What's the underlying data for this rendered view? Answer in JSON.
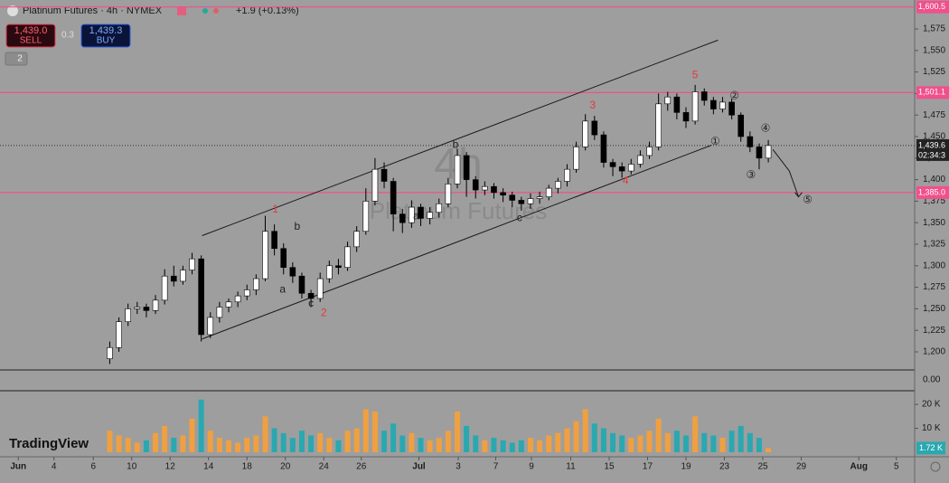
{
  "header": {
    "symbol": "Platinum Futures · 4h · NYMEX",
    "change": "+1.9 (+0.13%)",
    "sell_price": "1,439.0",
    "sell": "SELL",
    "spread": "0.3",
    "buy_price": "1,439.3",
    "buy": "BUY",
    "layers": "2",
    "logo": "TradingView"
  },
  "watermark": {
    "interval": "4h",
    "name": "Platinum Futures"
  },
  "chart_data": {
    "type": "candlestick",
    "up_color": "#ffffff",
    "down_color": "#000000",
    "xlim": [
      0,
      100
    ],
    "ylim": [
      1179,
      1608.6
    ],
    "yticks": [
      {
        "value": 1200,
        "label": "1,200"
      },
      {
        "value": 1225,
        "label": "1,225"
      },
      {
        "value": 1250,
        "label": "1,250"
      },
      {
        "value": 1275,
        "label": "1,275"
      },
      {
        "value": 1300,
        "label": "1,300"
      },
      {
        "value": 1325,
        "label": "1,325"
      },
      {
        "value": 1350,
        "label": "1,350"
      },
      {
        "value": 1375,
        "label": "1,375"
      },
      {
        "value": 1400,
        "label": "1,400"
      },
      {
        "value": 1425,
        "label": "1,425"
      },
      {
        "value": 1450,
        "label": "1,450"
      },
      {
        "value": 1475,
        "label": "1,475"
      },
      {
        "value": 1500,
        "label": "1,500"
      },
      {
        "value": 1525,
        "label": "1,525"
      },
      {
        "value": 1550,
        "label": "1,550"
      },
      {
        "value": 1575,
        "label": "1,575"
      }
    ],
    "xticks": [
      {
        "value": 2,
        "label": "Jun"
      },
      {
        "value": 5.9,
        "label": "4"
      },
      {
        "value": 10.2,
        "label": "6"
      },
      {
        "value": 14.4,
        "label": "10"
      },
      {
        "value": 18.6,
        "label": "12"
      },
      {
        "value": 22.8,
        "label": "14"
      },
      {
        "value": 27,
        "label": "18"
      },
      {
        "value": 31.2,
        "label": "20"
      },
      {
        "value": 35.4,
        "label": "24"
      },
      {
        "value": 39.5,
        "label": "26"
      },
      {
        "value": 45.8,
        "label": "Jul"
      },
      {
        "value": 50.1,
        "label": "3"
      },
      {
        "value": 54.2,
        "label": "7"
      },
      {
        "value": 58.1,
        "label": "9"
      },
      {
        "value": 62.4,
        "label": "11"
      },
      {
        "value": 66.6,
        "label": "15"
      },
      {
        "value": 70.8,
        "label": "17"
      },
      {
        "value": 75,
        "label": "19"
      },
      {
        "value": 79.2,
        "label": "23"
      },
      {
        "value": 83.4,
        "label": "25"
      },
      {
        "value": 87.6,
        "label": "29"
      },
      {
        "value": 93.9,
        "label": "Aug"
      },
      {
        "value": 98,
        "label": "5"
      }
    ],
    "candles": [
      [
        12,
        1192,
        1212,
        1186,
        1205
      ],
      [
        13,
        1205,
        1240,
        1200,
        1235
      ],
      [
        14,
        1235,
        1256,
        1230,
        1250
      ],
      [
        15,
        1250,
        1258,
        1244,
        1252
      ],
      [
        16,
        1252,
        1256,
        1240,
        1248
      ],
      [
        17,
        1248,
        1266,
        1244,
        1260
      ],
      [
        18,
        1260,
        1296,
        1255,
        1288
      ],
      [
        19,
        1288,
        1300,
        1276,
        1282
      ],
      [
        20,
        1282,
        1300,
        1278,
        1295
      ],
      [
        21,
        1295,
        1315,
        1290,
        1308
      ],
      [
        22,
        1308,
        1312,
        1212,
        1220
      ],
      [
        23,
        1220,
        1246,
        1216,
        1240
      ],
      [
        24,
        1240,
        1258,
        1234,
        1252
      ],
      [
        25,
        1252,
        1262,
        1246,
        1258
      ],
      [
        26,
        1258,
        1270,
        1252,
        1265
      ],
      [
        27,
        1265,
        1278,
        1260,
        1272
      ],
      [
        28,
        1272,
        1290,
        1266,
        1285
      ],
      [
        29,
        1285,
        1358,
        1282,
        1340
      ],
      [
        30,
        1340,
        1348,
        1312,
        1320
      ],
      [
        31,
        1320,
        1326,
        1290,
        1298
      ],
      [
        32,
        1298,
        1304,
        1280,
        1288
      ],
      [
        33,
        1288,
        1292,
        1262,
        1268
      ],
      [
        34,
        1268,
        1272,
        1252,
        1262
      ],
      [
        35,
        1262,
        1292,
        1258,
        1285
      ],
      [
        36,
        1285,
        1306,
        1280,
        1300
      ],
      [
        37,
        1300,
        1308,
        1290,
        1298
      ],
      [
        38,
        1298,
        1328,
        1294,
        1322
      ],
      [
        39,
        1322,
        1346,
        1316,
        1340
      ],
      [
        40,
        1340,
        1390,
        1336,
        1375
      ],
      [
        41,
        1375,
        1425,
        1370,
        1412
      ],
      [
        42,
        1412,
        1420,
        1390,
        1398
      ],
      [
        43,
        1398,
        1402,
        1340,
        1360
      ],
      [
        44,
        1360,
        1366,
        1338,
        1350
      ],
      [
        45,
        1350,
        1376,
        1344,
        1368
      ],
      [
        46,
        1368,
        1372,
        1346,
        1355
      ],
      [
        47,
        1355,
        1368,
        1348,
        1362
      ],
      [
        48,
        1362,
        1378,
        1356,
        1372
      ],
      [
        49,
        1372,
        1402,
        1368,
        1395
      ],
      [
        50,
        1395,
        1436,
        1390,
        1428
      ],
      [
        51,
        1428,
        1432,
        1380,
        1400
      ],
      [
        52,
        1400,
        1404,
        1378,
        1388
      ],
      [
        53,
        1388,
        1398,
        1382,
        1392
      ],
      [
        54,
        1392,
        1396,
        1378,
        1385
      ],
      [
        55,
        1385,
        1390,
        1374,
        1382
      ],
      [
        56,
        1382,
        1386,
        1368,
        1376
      ],
      [
        57,
        1376,
        1380,
        1364,
        1372
      ],
      [
        58,
        1372,
        1384,
        1366,
        1378
      ],
      [
        59,
        1378,
        1386,
        1372,
        1380
      ],
      [
        60,
        1380,
        1394,
        1376,
        1390
      ],
      [
        61,
        1390,
        1402,
        1384,
        1398
      ],
      [
        62,
        1398,
        1418,
        1392,
        1412
      ],
      [
        63,
        1412,
        1444,
        1408,
        1438
      ],
      [
        64,
        1438,
        1476,
        1434,
        1468
      ],
      [
        65,
        1468,
        1474,
        1446,
        1452
      ],
      [
        66,
        1452,
        1456,
        1414,
        1420
      ],
      [
        67,
        1420,
        1424,
        1404,
        1415
      ],
      [
        68,
        1415,
        1420,
        1402,
        1410
      ],
      [
        69,
        1410,
        1424,
        1406,
        1418
      ],
      [
        70,
        1418,
        1434,
        1414,
        1428
      ],
      [
        71,
        1428,
        1444,
        1424,
        1438
      ],
      [
        72,
        1438,
        1500,
        1434,
        1488
      ],
      [
        73,
        1488,
        1502,
        1480,
        1496
      ],
      [
        74,
        1496,
        1500,
        1470,
        1478
      ],
      [
        75,
        1478,
        1484,
        1460,
        1468
      ],
      [
        76,
        1468,
        1510,
        1464,
        1502
      ],
      [
        77,
        1502,
        1506,
        1486,
        1492
      ],
      [
        78,
        1492,
        1496,
        1476,
        1482
      ],
      [
        79,
        1482,
        1496,
        1478,
        1490
      ],
      [
        80,
        1490,
        1494,
        1470,
        1475
      ],
      [
        81,
        1475,
        1478,
        1444,
        1450
      ],
      [
        82,
        1450,
        1456,
        1432,
        1438
      ],
      [
        83,
        1438,
        1442,
        1412,
        1425
      ],
      [
        84,
        1425,
        1446,
        1420,
        1439.6
      ]
    ],
    "hlines": [
      {
        "value": 1600.5,
        "label": "1,600.5",
        "color": "#f0508c"
      },
      {
        "value": 1501.1,
        "label": "1,501.1",
        "color": "#f0508c"
      },
      {
        "value": 1385,
        "label": "1,385.0",
        "color": "#f0508c"
      }
    ],
    "last_price": {
      "value": 1439.6,
      "label": "1,439.6",
      "countdown": "02:34:3"
    },
    "channel": [
      {
        "x1": 22.1,
        "y1": 1335,
        "x2": 78.5,
        "y2": 1562
      },
      {
        "x1": 22.1,
        "y1": 1215,
        "x2": 77.8,
        "y2": 1440
      }
    ],
    "projection": {
      "x": [
        84.5,
        86.3,
        87.3
      ],
      "y": [
        1435,
        1410,
        1380
      ]
    },
    "annotations": [
      {
        "text": "1",
        "x": 30.1,
        "y": 1365,
        "color": "#e83838"
      },
      {
        "text": "2",
        "x": 35.4,
        "y": 1245,
        "color": "#e83838"
      },
      {
        "text": "3",
        "x": 64.8,
        "y": 1486,
        "color": "#e83838"
      },
      {
        "text": "4",
        "x": 68.4,
        "y": 1398,
        "color": "#e83838"
      },
      {
        "text": "5",
        "x": 76,
        "y": 1521,
        "color": "#e83838"
      },
      {
        "text": "b",
        "x": 32.5,
        "y": 1345,
        "color": "#202020"
      },
      {
        "text": "a",
        "x": 30.9,
        "y": 1272,
        "color": "#202020"
      },
      {
        "text": "c",
        "x": 34,
        "y": 1256,
        "color": "#202020"
      },
      {
        "text": "b",
        "x": 49.8,
        "y": 1440,
        "color": "#202020"
      },
      {
        "text": "a",
        "x": 45.5,
        "y": 1357,
        "color": "#202020"
      },
      {
        "text": "c",
        "x": 56.8,
        "y": 1355,
        "color": "#202020"
      },
      {
        "text": "①",
        "x": 78.2,
        "y": 1444,
        "color": "#202020"
      },
      {
        "text": "②",
        "x": 80.3,
        "y": 1497,
        "color": "#202020"
      },
      {
        "text": "③",
        "x": 82.1,
        "y": 1405,
        "color": "#202020"
      },
      {
        "text": "④",
        "x": 83.7,
        "y": 1459,
        "color": "#202020"
      },
      {
        "text": "⑤",
        "x": 88.3,
        "y": 1376,
        "color": "#202020"
      }
    ],
    "indicator": {
      "label": "0.00"
    },
    "volume": {
      "ylim": [
        0,
        25700
      ],
      "yticks": [
        {
          "value": 10000,
          "label": "10 K"
        },
        {
          "value": 20000,
          "label": "20 K"
        }
      ],
      "last_label": "1.72 K",
      "last_value": 1720,
      "up_color": "#f0a040",
      "down_color": "#2aa8b0",
      "values": [
        9000,
        7000,
        6000,
        4000,
        5000,
        8000,
        11000,
        6000,
        7000,
        14000,
        22000,
        9000,
        6000,
        5000,
        4000,
        6000,
        7000,
        15000,
        10000,
        8000,
        6000,
        9000,
        7000,
        8000,
        6000,
        5000,
        9000,
        10000,
        18000,
        17000,
        9000,
        12000,
        7000,
        8000,
        6000,
        5000,
        6000,
        9000,
        17000,
        11000,
        7000,
        5000,
        6000,
        5000,
        4000,
        5000,
        6000,
        5000,
        7000,
        8000,
        10000,
        13000,
        18000,
        12000,
        10000,
        8000,
        7000,
        6000,
        7000,
        9000,
        14000,
        8000,
        9000,
        7000,
        15000,
        8000,
        7000,
        6000,
        9000,
        11000,
        8000,
        6000,
        1720
      ]
    }
  }
}
